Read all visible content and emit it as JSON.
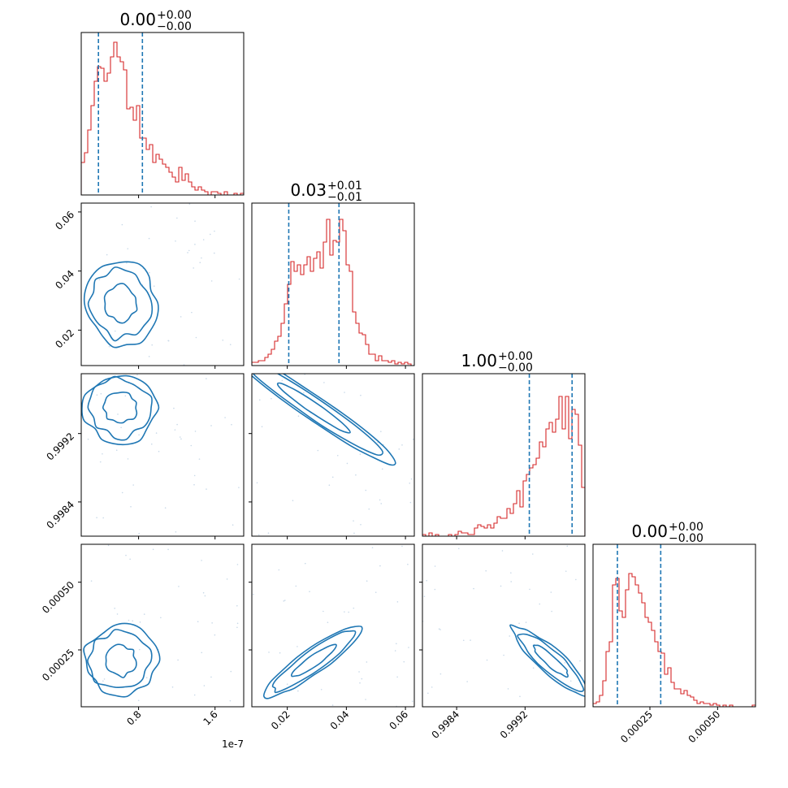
{
  "chart_data": {
    "type": "corner",
    "colors": {
      "hist": "#d62728",
      "contour": "#1f77b4",
      "quantile": "#1f77b4",
      "frame": "#000000"
    },
    "offset_label": "1e-7",
    "titles": [
      {
        "value": "0.00",
        "plus": "+0.00",
        "minus": "−0.00"
      },
      {
        "value": "0.03",
        "plus": "+0.01",
        "minus": "−0.01"
      },
      {
        "value": "1.00",
        "plus": "+0.00",
        "minus": "−0.00"
      },
      {
        "value": "0.00",
        "plus": "+0.00",
        "minus": "−0.00"
      }
    ],
    "params": [
      {
        "range": [
          0.2,
          1.9
        ],
        "ticks": [
          {
            "v": 0.8,
            "label": "0.8"
          },
          {
            "v": 1.6,
            "label": "1.6"
          }
        ]
      },
      {
        "range": [
          0.008,
          0.063
        ],
        "ticks": [
          {
            "v": 0.02,
            "label": "0.02"
          },
          {
            "v": 0.04,
            "label": "0.04"
          },
          {
            "v": 0.06,
            "label": "0.06"
          }
        ]
      },
      {
        "range": [
          0.998,
          0.9999
        ],
        "ticks": [
          {
            "v": 0.9984,
            "label": "0.9984"
          },
          {
            "v": 0.9992,
            "label": "0.9992"
          }
        ]
      },
      {
        "range": [
          4e-05,
          0.00064
        ],
        "ticks": [
          {
            "v": 0.00025,
            "label": "0.00025"
          },
          {
            "v": 0.0005,
            "label": "0.00050"
          }
        ]
      }
    ],
    "quantiles": [
      [
        0.38,
        0.84
      ],
      [
        0.0205,
        0.0375
      ],
      [
        0.99925,
        0.99975
      ],
      [
        0.00013,
        0.00029
      ]
    ],
    "histograms": [
      [
        0.2,
        0.26,
        0.4,
        0.55,
        0.7,
        0.79,
        0.78,
        0.7,
        0.75,
        0.85,
        0.94,
        0.85,
        0.82,
        0.77,
        0.53,
        0.54,
        0.46,
        0.55,
        0.35,
        0.35,
        0.28,
        0.31,
        0.2,
        0.25,
        0.22,
        0.19,
        0.17,
        0.14,
        0.11,
        0.08,
        0.17,
        0.09,
        0.13,
        0.08,
        0.05,
        0.03,
        0.05,
        0.03,
        0.02,
        0.0,
        0.02,
        0.02,
        0.01,
        0.0,
        0.02,
        0.0,
        0.0,
        0.01,
        0.0,
        0.01
      ],
      [
        0.02,
        0.02,
        0.03,
        0.03,
        0.05,
        0.07,
        0.1,
        0.15,
        0.18,
        0.26,
        0.38,
        0.5,
        0.64,
        0.58,
        0.62,
        0.56,
        0.62,
        0.67,
        0.58,
        0.66,
        0.7,
        0.6,
        0.76,
        0.9,
        0.68,
        0.77,
        0.76,
        0.9,
        0.83,
        0.62,
        0.58,
        0.33,
        0.26,
        0.2,
        0.19,
        0.13,
        0.07,
        0.07,
        0.03,
        0.06,
        0.03,
        0.03,
        0.02,
        0.03,
        0.01,
        0.02,
        0.01,
        0.02,
        0.01,
        0.0
      ],
      [
        0.01,
        0.0,
        0.02,
        0.0,
        0.01,
        0.0,
        0.0,
        0.0,
        0.01,
        0.0,
        0.01,
        0.03,
        0.02,
        0.02,
        0.01,
        0.01,
        0.05,
        0.07,
        0.06,
        0.05,
        0.07,
        0.05,
        0.08,
        0.12,
        0.11,
        0.11,
        0.17,
        0.14,
        0.2,
        0.28,
        0.18,
        0.34,
        0.38,
        0.42,
        0.44,
        0.48,
        0.58,
        0.55,
        0.66,
        0.7,
        0.64,
        0.72,
        0.86,
        0.66,
        0.86,
        0.6,
        0.78,
        0.75,
        0.56,
        0.3
      ],
      [
        0.02,
        0.03,
        0.07,
        0.16,
        0.34,
        0.4,
        0.75,
        0.79,
        0.59,
        0.55,
        0.72,
        0.82,
        0.8,
        0.75,
        0.7,
        0.64,
        0.55,
        0.52,
        0.47,
        0.4,
        0.34,
        0.33,
        0.2,
        0.24,
        0.15,
        0.11,
        0.11,
        0.08,
        0.1,
        0.07,
        0.06,
        0.04,
        0.02,
        0.03,
        0.02,
        0.02,
        0.01,
        0.02,
        0.01,
        0.0,
        0.01,
        0.0,
        0.01,
        0.0,
        0.0,
        0.0,
        0.0,
        0.0,
        0.0,
        0.01
      ]
    ]
  }
}
